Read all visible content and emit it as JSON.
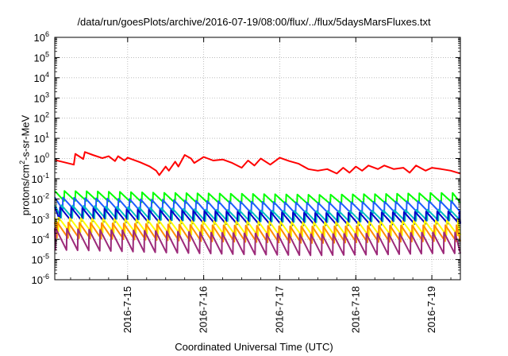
{
  "chart_data": {
    "type": "line",
    "title": "/data/run/goesPlots/archive/2016-07-19/08:00/flux/../flux/5daysMarsFluxes.txt",
    "xlabel": "Coordinated Universal Time (UTC)",
    "ylabel_parts": [
      "protons/cm",
      "2",
      "-s-sr-MeV"
    ],
    "ylim": [
      1e-06,
      1000000.0
    ],
    "yscale": "log",
    "y_ticks": [
      {
        "base": "10",
        "exp": "-6",
        "value": 1e-06
      },
      {
        "base": "10",
        "exp": "-5",
        "value": 1e-05
      },
      {
        "base": "10",
        "exp": "-4",
        "value": 0.0001
      },
      {
        "base": "10",
        "exp": "-3",
        "value": 0.001
      },
      {
        "base": "10",
        "exp": "-2",
        "value": 0.01
      },
      {
        "base": "10",
        "exp": "-1",
        "value": 0.1
      },
      {
        "base": "10",
        "exp": "0",
        "value": 1
      },
      {
        "base": "10",
        "exp": "1",
        "value": 10
      },
      {
        "base": "10",
        "exp": "2",
        "value": 100
      },
      {
        "base": "10",
        "exp": "3",
        "value": 1000
      },
      {
        "base": "10",
        "exp": "4",
        "value": 10000
      },
      {
        "base": "10",
        "exp": "5",
        "value": 100000
      },
      {
        "base": "10",
        "exp": "6",
        "value": 1000000
      }
    ],
    "x_ticks": [
      "2016-7-15",
      "2016-7-16",
      "2016-7-17",
      "2016-7-18",
      "2016-7-19"
    ],
    "xlim": [
      "2016-07-14 01:00",
      "2016-07-19 09:00"
    ],
    "grid": true,
    "series": [
      {
        "color": "#ff0000",
        "points": [
          [
            "2016-07-14 01:00",
            0.85
          ],
          [
            "2016-07-14 07:00",
            0.5
          ],
          [
            "2016-07-14 07:30",
            1.7
          ],
          [
            "2016-07-14 09:00",
            1.2
          ],
          [
            "2016-07-14 10:00",
            0.95
          ],
          [
            "2016-07-14 10:30",
            2.1
          ],
          [
            "2016-07-14 13:00",
            1.5
          ],
          [
            "2016-07-14 16:00",
            1.05
          ],
          [
            "2016-07-14 18:00",
            1.3
          ],
          [
            "2016-07-14 20:00",
            0.75
          ],
          [
            "2016-07-14 21:00",
            1.3
          ],
          [
            "2016-07-14 23:00",
            0.8
          ],
          [
            "2016-07-15 00:00",
            1.1
          ],
          [
            "2016-07-15 04:00",
            0.65
          ],
          [
            "2016-07-15 07:00",
            0.4
          ],
          [
            "2016-07-15 09:00",
            0.25
          ],
          [
            "2016-07-15 10:00",
            0.15
          ],
          [
            "2016-07-15 12:00",
            0.4
          ],
          [
            "2016-07-15 13:00",
            0.25
          ],
          [
            "2016-07-15 15:00",
            0.7
          ],
          [
            "2016-07-15 16:00",
            0.4
          ],
          [
            "2016-07-15 18:00",
            1.5
          ],
          [
            "2016-07-15 20:00",
            1.0
          ],
          [
            "2016-07-15 21:00",
            0.6
          ],
          [
            "2016-07-16 00:00",
            1.2
          ],
          [
            "2016-07-16 03:00",
            0.8
          ],
          [
            "2016-07-16 06:00",
            0.9
          ],
          [
            "2016-07-16 09:00",
            0.6
          ],
          [
            "2016-07-16 12:00",
            0.35
          ],
          [
            "2016-07-16 14:00",
            0.8
          ],
          [
            "2016-07-16 16:00",
            0.45
          ],
          [
            "2016-07-16 18:00",
            1.0
          ],
          [
            "2016-07-16 21:00",
            0.5
          ],
          [
            "2016-07-17 00:00",
            1.1
          ],
          [
            "2016-07-17 03:00",
            0.75
          ],
          [
            "2016-07-17 06:00",
            0.55
          ],
          [
            "2016-07-17 09:00",
            0.3
          ],
          [
            "2016-07-17 12:00",
            0.25
          ],
          [
            "2016-07-17 15:00",
            0.3
          ],
          [
            "2016-07-17 18:00",
            0.18
          ],
          [
            "2016-07-17 20:00",
            0.35
          ],
          [
            "2016-07-17 22:00",
            0.2
          ],
          [
            "2016-07-18 00:00",
            0.4
          ],
          [
            "2016-07-18 02:00",
            0.25
          ],
          [
            "2016-07-18 04:00",
            0.45
          ],
          [
            "2016-07-18 07:00",
            0.3
          ],
          [
            "2016-07-18 09:00",
            0.45
          ],
          [
            "2016-07-18 12:00",
            0.3
          ],
          [
            "2016-07-18 15:00",
            0.35
          ],
          [
            "2016-07-18 17:00",
            0.2
          ],
          [
            "2016-07-18 19:00",
            0.45
          ],
          [
            "2016-07-18 22:00",
            0.25
          ],
          [
            "2016-07-19 00:00",
            0.35
          ],
          [
            "2016-07-19 03:00",
            0.3
          ],
          [
            "2016-07-19 06:00",
            0.25
          ],
          [
            "2016-07-19 09:00",
            0.18
          ]
        ]
      },
      {
        "color": "#00ff00",
        "peaks": [
          [
            "2016-07-14 01:00",
            0.025
          ],
          [
            "2016-07-14 12:00",
            0.024
          ],
          [
            "2016-07-15 00:00",
            0.022
          ],
          [
            "2016-07-15 12:00",
            0.02
          ],
          [
            "2016-07-16 00:00",
            0.019
          ],
          [
            "2016-07-16 12:00",
            0.018
          ],
          [
            "2016-07-17 00:00",
            0.017
          ],
          [
            "2016-07-17 12:00",
            0.016
          ],
          [
            "2016-07-18 00:00",
            0.017
          ],
          [
            "2016-07-18 12:00",
            0.018
          ],
          [
            "2016-07-19 00:00",
            0.02
          ],
          [
            "2016-07-19 09:00",
            0.02
          ]
        ],
        "troughs": [
          [
            "2016-07-14 01:00",
            0.008
          ],
          [
            "2016-07-14 12:00",
            0.008
          ],
          [
            "2016-07-15 00:00",
            0.007
          ],
          [
            "2016-07-15 12:00",
            0.0065
          ],
          [
            "2016-07-16 00:00",
            0.006
          ],
          [
            "2016-07-16 12:00",
            0.006
          ],
          [
            "2016-07-17 00:00",
            0.0055
          ],
          [
            "2016-07-17 12:00",
            0.0055
          ],
          [
            "2016-07-18 00:00",
            0.006
          ],
          [
            "2016-07-18 12:00",
            0.006
          ],
          [
            "2016-07-19 00:00",
            0.0065
          ],
          [
            "2016-07-19 09:00",
            0.0065
          ]
        ]
      },
      {
        "color": "#1e5cff",
        "peaks": [
          [
            "2016-07-14 01:00",
            0.012
          ],
          [
            "2016-07-14 12:00",
            0.011
          ],
          [
            "2016-07-15 00:00",
            0.01
          ],
          [
            "2016-07-15 12:00",
            0.009
          ],
          [
            "2016-07-16 00:00",
            0.008
          ],
          [
            "2016-07-16 12:00",
            0.0075
          ],
          [
            "2016-07-17 00:00",
            0.007
          ],
          [
            "2016-07-17 12:00",
            0.0065
          ],
          [
            "2016-07-18 00:00",
            0.007
          ],
          [
            "2016-07-18 12:00",
            0.0075
          ],
          [
            "2016-07-19 00:00",
            0.008
          ],
          [
            "2016-07-19 09:00",
            0.008
          ]
        ],
        "troughs": [
          [
            "2016-07-14 01:00",
            0.003
          ],
          [
            "2016-07-14 12:00",
            0.003
          ],
          [
            "2016-07-15 00:00",
            0.0025
          ],
          [
            "2016-07-15 12:00",
            0.0023
          ],
          [
            "2016-07-16 00:00",
            0.002
          ],
          [
            "2016-07-16 12:00",
            0.002
          ],
          [
            "2016-07-17 00:00",
            0.0019
          ],
          [
            "2016-07-17 12:00",
            0.0018
          ],
          [
            "2016-07-18 00:00",
            0.002
          ],
          [
            "2016-07-18 12:00",
            0.002
          ],
          [
            "2016-07-19 00:00",
            0.0022
          ],
          [
            "2016-07-19 09:00",
            0.0022
          ]
        ]
      },
      {
        "color": "#00bfbf",
        "peaks": [
          [
            "2016-07-14 01:00",
            0.005
          ],
          [
            "2016-07-14 12:00",
            0.0045
          ],
          [
            "2016-07-15 00:00",
            0.004
          ],
          [
            "2016-07-15 12:00",
            0.0035
          ],
          [
            "2016-07-16 00:00",
            0.003
          ],
          [
            "2016-07-16 12:00",
            0.0028
          ],
          [
            "2016-07-17 00:00",
            0.0026
          ],
          [
            "2016-07-17 12:00",
            0.0025
          ],
          [
            "2016-07-18 00:00",
            0.0026
          ],
          [
            "2016-07-18 12:00",
            0.0028
          ],
          [
            "2016-07-19 00:00",
            0.003
          ],
          [
            "2016-07-19 09:00",
            0.003
          ]
        ],
        "troughs": [
          [
            "2016-07-14 01:00",
            0.0012
          ],
          [
            "2016-07-14 12:00",
            0.0011
          ],
          [
            "2016-07-15 00:00",
            0.001
          ],
          [
            "2016-07-15 12:00",
            0.0009
          ],
          [
            "2016-07-16 00:00",
            0.0008
          ],
          [
            "2016-07-16 12:00",
            0.0008
          ],
          [
            "2016-07-17 00:00",
            0.00075
          ],
          [
            "2016-07-17 12:00",
            0.0007
          ],
          [
            "2016-07-18 00:00",
            0.00075
          ],
          [
            "2016-07-18 12:00",
            0.0008
          ],
          [
            "2016-07-19 00:00",
            0.00085
          ],
          [
            "2016-07-19 09:00",
            0.00085
          ]
        ]
      },
      {
        "color": "#0000c8",
        "peaks": [
          [
            "2016-07-14 01:00",
            0.004
          ],
          [
            "2016-07-14 12:00",
            0.0035
          ],
          [
            "2016-07-15 00:00",
            0.003
          ],
          [
            "2016-07-15 12:00",
            0.0028
          ],
          [
            "2016-07-16 00:00",
            0.0025
          ],
          [
            "2016-07-16 12:00",
            0.0023
          ],
          [
            "2016-07-17 00:00",
            0.0022
          ],
          [
            "2016-07-17 12:00",
            0.002
          ],
          [
            "2016-07-18 00:00",
            0.0021
          ],
          [
            "2016-07-18 12:00",
            0.0022
          ],
          [
            "2016-07-19 00:00",
            0.0024
          ],
          [
            "2016-07-19 09:00",
            0.0024
          ]
        ],
        "troughs": [
          [
            "2016-07-14 01:00",
            0.0009
          ],
          [
            "2016-07-14 12:00",
            0.0008
          ],
          [
            "2016-07-15 00:00",
            0.0007
          ],
          [
            "2016-07-15 12:00",
            0.00065
          ],
          [
            "2016-07-16 00:00",
            0.0006
          ],
          [
            "2016-07-16 12:00",
            0.00055
          ],
          [
            "2016-07-17 00:00",
            0.0005
          ],
          [
            "2016-07-17 12:00",
            0.0005
          ],
          [
            "2016-07-18 00:00",
            0.0005
          ],
          [
            "2016-07-18 12:00",
            0.00055
          ],
          [
            "2016-07-19 00:00",
            0.0006
          ],
          [
            "2016-07-19 09:00",
            0.0006
          ]
        ]
      },
      {
        "color": "#ffff00",
        "peaks": [
          [
            "2016-07-14 01:00",
            0.0012
          ],
          [
            "2016-07-14 12:00",
            0.0011
          ],
          [
            "2016-07-15 00:00",
            0.001
          ],
          [
            "2016-07-15 12:00",
            0.0009
          ],
          [
            "2016-07-16 00:00",
            0.0008
          ],
          [
            "2016-07-16 12:00",
            0.0008
          ],
          [
            "2016-07-17 00:00",
            0.00075
          ],
          [
            "2016-07-17 12:00",
            0.0007
          ],
          [
            "2016-07-18 00:00",
            0.00075
          ],
          [
            "2016-07-18 12:00",
            0.0008
          ],
          [
            "2016-07-19 00:00",
            0.00085
          ],
          [
            "2016-07-19 09:00",
            0.00085
          ]
        ],
        "troughs": [
          [
            "2016-07-14 01:00",
            0.00025
          ],
          [
            "2016-07-14 12:00",
            0.00022
          ],
          [
            "2016-07-15 00:00",
            0.0002
          ],
          [
            "2016-07-15 12:00",
            0.00018
          ],
          [
            "2016-07-16 00:00",
            0.00016
          ],
          [
            "2016-07-16 12:00",
            0.00015
          ],
          [
            "2016-07-17 00:00",
            0.00014
          ],
          [
            "2016-07-17 12:00",
            0.00013
          ],
          [
            "2016-07-18 00:00",
            0.00014
          ],
          [
            "2016-07-18 12:00",
            0.00015
          ],
          [
            "2016-07-19 00:00",
            0.00016
          ],
          [
            "2016-07-19 09:00",
            0.00016
          ]
        ]
      },
      {
        "color": "#ff8c00",
        "peaks": [
          [
            "2016-07-14 01:00",
            0.0007
          ],
          [
            "2016-07-14 12:00",
            0.00065
          ],
          [
            "2016-07-15 00:00",
            0.0006
          ],
          [
            "2016-07-15 12:00",
            0.00055
          ],
          [
            "2016-07-16 00:00",
            0.0005
          ],
          [
            "2016-07-16 12:00",
            0.00048
          ],
          [
            "2016-07-17 00:00",
            0.00045
          ],
          [
            "2016-07-17 12:00",
            0.00043
          ],
          [
            "2016-07-18 00:00",
            0.00045
          ],
          [
            "2016-07-18 12:00",
            0.00048
          ],
          [
            "2016-07-19 00:00",
            0.0005
          ],
          [
            "2016-07-19 09:00",
            0.0005
          ]
        ],
        "troughs": [
          [
            "2016-07-14 01:00",
            0.00012
          ],
          [
            "2016-07-14 12:00",
            0.00011
          ],
          [
            "2016-07-15 00:00",
            0.0001
          ],
          [
            "2016-07-15 12:00",
            9e-05
          ],
          [
            "2016-07-16 00:00",
            8e-05
          ],
          [
            "2016-07-16 12:00",
            7.5e-05
          ],
          [
            "2016-07-17 00:00",
            7e-05
          ],
          [
            "2016-07-17 12:00",
            6.5e-05
          ],
          [
            "2016-07-18 00:00",
            7e-05
          ],
          [
            "2016-07-18 12:00",
            7.5e-05
          ],
          [
            "2016-07-19 00:00",
            8e-05
          ],
          [
            "2016-07-19 09:00",
            8e-05
          ]
        ]
      },
      {
        "color": "#9c2a7a",
        "peaks": [
          [
            "2016-07-14 01:00",
            0.00035
          ],
          [
            "2016-07-14 12:00",
            0.0003
          ],
          [
            "2016-07-15 00:00",
            0.00028
          ],
          [
            "2016-07-15 12:00",
            0.00025
          ],
          [
            "2016-07-16 00:00",
            0.00022
          ],
          [
            "2016-07-16 12:00",
            0.0002
          ],
          [
            "2016-07-17 00:00",
            0.00019
          ],
          [
            "2016-07-17 12:00",
            0.00018
          ],
          [
            "2016-07-18 00:00",
            0.00019
          ],
          [
            "2016-07-18 12:00",
            0.0002
          ],
          [
            "2016-07-19 00:00",
            0.00022
          ],
          [
            "2016-07-19 09:00",
            0.00022
          ]
        ],
        "troughs": [
          [
            "2016-07-14 01:00",
            3e-05
          ],
          [
            "2016-07-14 12:00",
            2.8e-05
          ],
          [
            "2016-07-15 00:00",
            2.5e-05
          ],
          [
            "2016-07-15 12:00",
            2.2e-05
          ],
          [
            "2016-07-16 00:00",
            2e-05
          ],
          [
            "2016-07-16 12:00",
            1.8e-05
          ],
          [
            "2016-07-17 00:00",
            1.7e-05
          ],
          [
            "2016-07-17 12:00",
            1.6e-05
          ],
          [
            "2016-07-18 00:00",
            1.7e-05
          ],
          [
            "2016-07-18 12:00",
            1.8e-05
          ],
          [
            "2016-07-19 00:00",
            2e-05
          ],
          [
            "2016-07-19 09:00",
            2e-05
          ]
        ]
      }
    ],
    "sawtooth_period_hours": 3.5
  }
}
